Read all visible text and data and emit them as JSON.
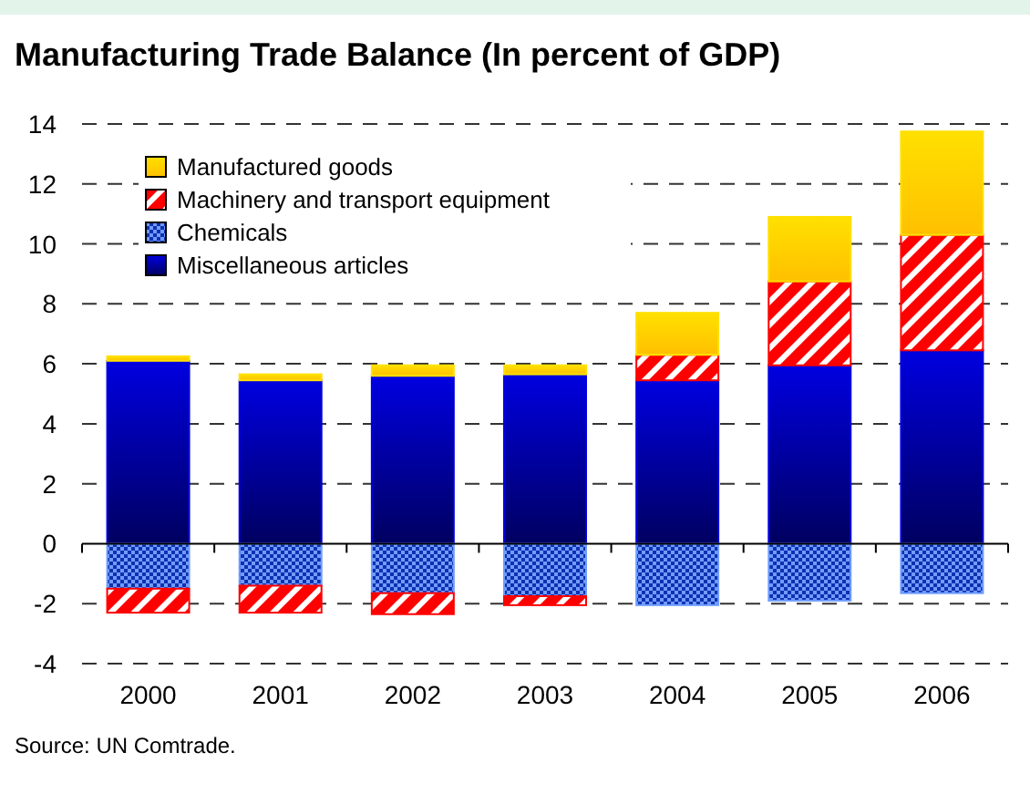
{
  "chart_data": {
    "type": "bar",
    "title": "Manufacturing Trade Balance (In percent of GDP)",
    "stacked": true,
    "categories": [
      "2000",
      "2001",
      "2002",
      "2003",
      "2004",
      "2005",
      "2006"
    ],
    "series": [
      {
        "name": "Miscellaneous articles",
        "color": "#0000e0",
        "values": [
          6.1,
          5.45,
          5.6,
          5.65,
          5.45,
          5.95,
          6.45
        ]
      },
      {
        "name": "Chemicals",
        "color": "#6f9cff",
        "values": [
          -1.5,
          -1.4,
          -1.65,
          -1.75,
          -2.05,
          -1.9,
          -1.65
        ]
      },
      {
        "name": "Machinery and transport equipment",
        "color": "#ff0000",
        "values": [
          -0.8,
          -0.9,
          -0.7,
          -0.3,
          0.85,
          2.8,
          3.85
        ]
      },
      {
        "name": "Manufactured goods",
        "color": "#ffe000",
        "values": [
          0.15,
          0.2,
          0.35,
          0.3,
          1.4,
          2.15,
          3.45
        ]
      }
    ],
    "ylim": [
      -4,
      14
    ],
    "yticks": [
      -4,
      -2,
      0,
      2,
      4,
      6,
      8,
      10,
      12,
      14
    ],
    "grid": "y",
    "legend": "top left",
    "annotations": [
      "Source: UN Comtrade."
    ]
  }
}
